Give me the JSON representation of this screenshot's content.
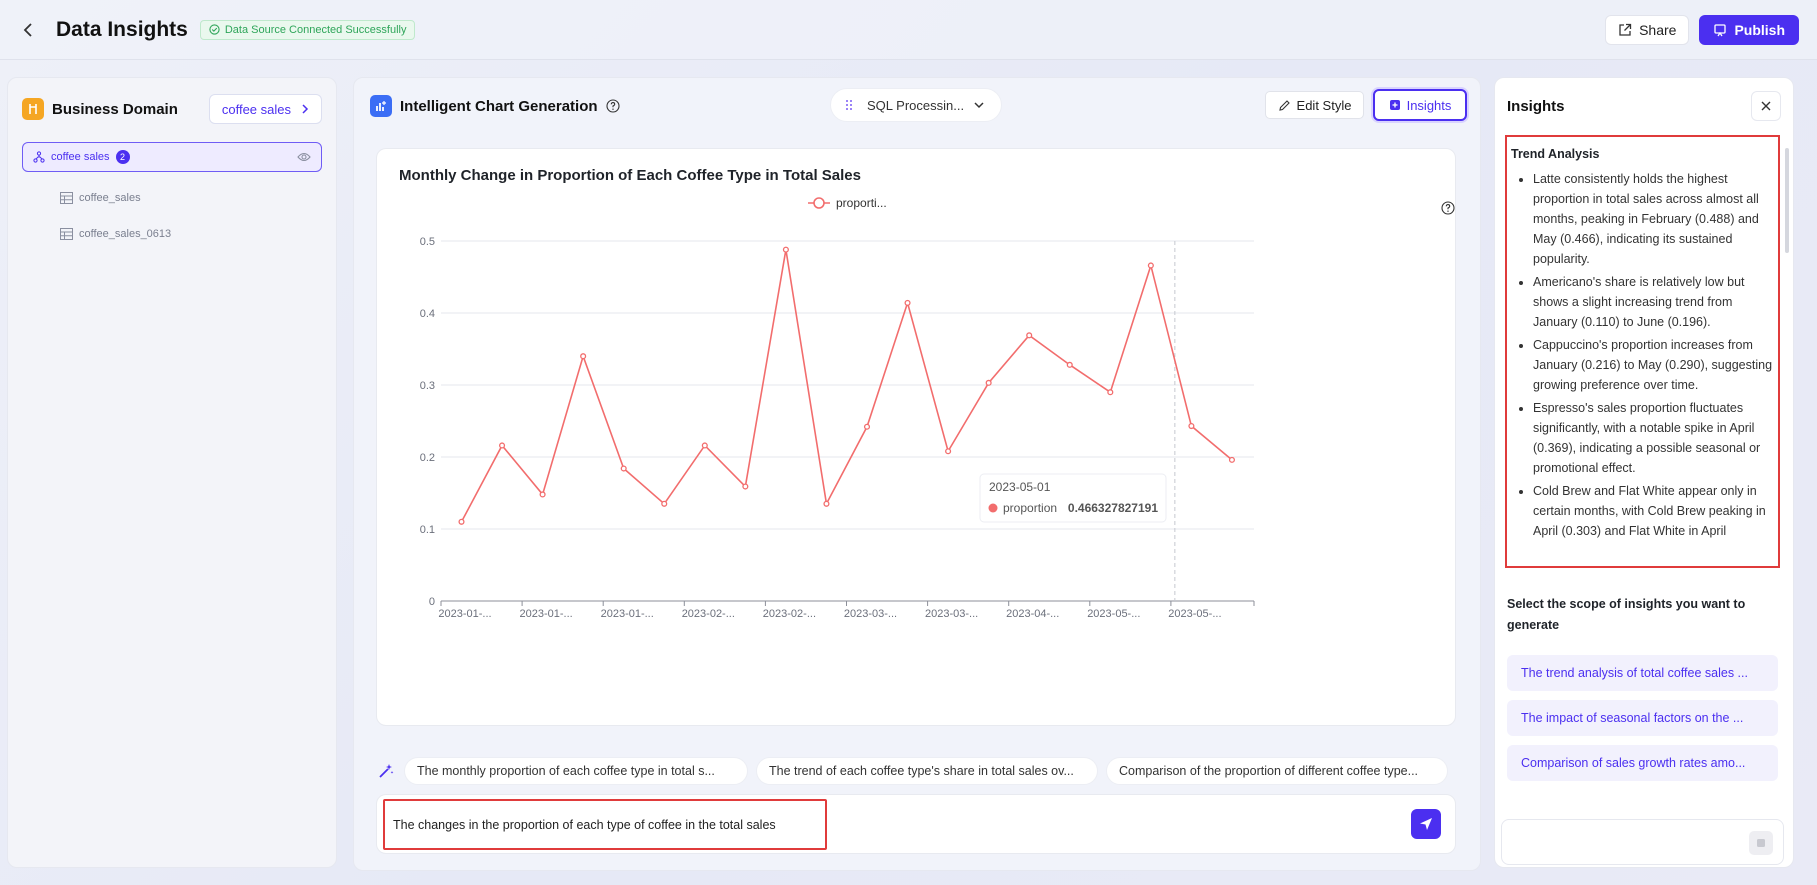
{
  "header": {
    "title": "Data Insights",
    "status": "Data Source Connected Successfully",
    "share_label": "Share",
    "publish_label": "Publish"
  },
  "left_panel": {
    "title": "Business Domain",
    "domain_select": "coffee sales",
    "tree_root": {
      "label": "coffee sales",
      "count": "2"
    },
    "tables": [
      "coffee_sales",
      "coffee_sales_0613"
    ]
  },
  "center_panel": {
    "title": "Intelligent Chart Generation",
    "sql_select": "SQL Processin...",
    "edit_style_label": "Edit Style",
    "insights_label": "Insights",
    "tooltip": {
      "date": "2023-05-01",
      "series": "proportion",
      "value": "0.466327827191"
    },
    "suggestions": [
      "The monthly proportion of each coffee type in total s...",
      "The trend of each coffee type's share in total sales ov...",
      "Comparison of the proportion of different coffee type..."
    ],
    "query_value": "The changes in the proportion of each type of coffee in the total sales"
  },
  "chart_data": {
    "type": "line",
    "title": "Monthly Change in Proportion of Each Coffee Type in Total Sales",
    "legend": [
      "proporti..."
    ],
    "legend_position": "top-center",
    "grid": true,
    "ylim": [
      0,
      0.5
    ],
    "yticks": [
      "0",
      "0.1",
      "0.2",
      "0.3",
      "0.4",
      "0.5"
    ],
    "xticks": [
      "2023-01-...",
      "2023-01-...",
      "2023-01-...",
      "2023-02-...",
      "2023-02-...",
      "2023-03-...",
      "2023-03-...",
      "2023-04-...",
      "2023-05-...",
      "2023-05-..."
    ],
    "series": [
      {
        "name": "proportion",
        "color": "#f26d6d",
        "values": [
          0.11,
          0.216,
          0.148,
          0.34,
          0.184,
          0.135,
          0.216,
          0.159,
          0.488,
          0.135,
          0.242,
          0.414,
          0.208,
          0.303,
          0.369,
          0.328,
          0.29,
          0.466,
          0.243,
          0.196
        ]
      }
    ]
  },
  "right_panel": {
    "title": "Insights",
    "section_title": "Trend Analysis",
    "insights": [
      "Latte consistently holds the highest proportion in total sales across almost all months, peaking in February (0.488) and May (0.466), indicating its sustained popularity.",
      "Americano's share is relatively low but shows a slight increasing trend from January (0.110) to June (0.196).",
      "Cappuccino's proportion increases from January (0.216) to May (0.290), suggesting growing preference over time.",
      "Espresso's sales proportion fluctuates significantly, with a notable spike in April (0.369), indicating a possible seasonal or promotional effect.",
      "Cold Brew and Flat White appear only in certain months, with Cold Brew peaking in April (0.303) and Flat White in April"
    ],
    "scope_title": "Select the scope of insights you want to generate",
    "scope_items": [
      "The trend analysis of total coffee sales ...",
      "The impact of seasonal factors on the ...",
      "Comparison of sales growth rates amo..."
    ]
  },
  "colors": {
    "accent": "#4b2ff0",
    "line": "#f26d6d",
    "highlight_border": "#e03b3b",
    "success": "#2fa55a"
  }
}
